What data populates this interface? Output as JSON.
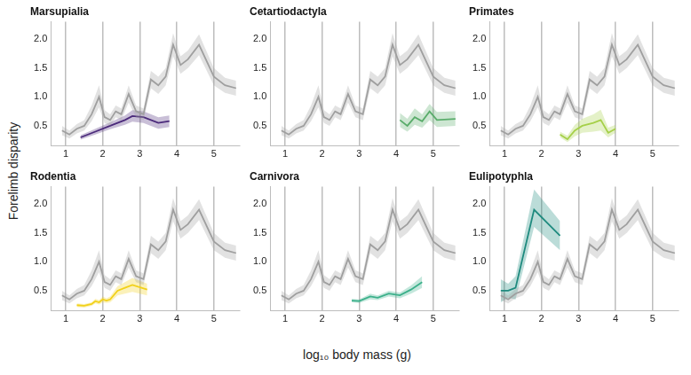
{
  "xlabel": "log₁₀ body mass (g)",
  "ylabel": "Forelimb disparity",
  "chart_data": [
    {
      "type": "line",
      "title": "Marsupialia",
      "xlim": [
        0.6,
        5.7
      ],
      "xticks": [
        1,
        2,
        3,
        4,
        5
      ],
      "ylim": [
        0.15,
        2.3
      ],
      "yticks": [
        0.5,
        {
          "value": 1,
          "label": "1.0"
        },
        1.5,
        {
          "value": 2,
          "label": "2.0"
        }
      ],
      "grid": "x",
      "series": [
        {
          "color": "#a0a0a0",
          "x": [
            0.9,
            1.1,
            1.3,
            1.5,
            1.7,
            1.9,
            2.05,
            2.2,
            2.35,
            2.5,
            2.7,
            2.9,
            3.1,
            3.3,
            3.5,
            3.7,
            3.9,
            4.1,
            4.3,
            4.6,
            5.0,
            5.3,
            5.6
          ],
          "values": [
            0.42,
            0.35,
            0.45,
            0.5,
            0.7,
            1.0,
            0.65,
            0.6,
            0.75,
            0.7,
            1.05,
            0.75,
            0.7,
            1.3,
            1.2,
            1.35,
            1.9,
            1.55,
            1.65,
            1.9,
            1.35,
            1.2,
            1.15
          ],
          "lower": [
            0.34,
            0.28,
            0.37,
            0.42,
            0.58,
            0.82,
            0.55,
            0.5,
            0.65,
            0.6,
            0.9,
            0.65,
            0.6,
            1.15,
            1.05,
            1.2,
            1.7,
            1.4,
            1.5,
            1.72,
            1.2,
            1.07,
            1.02
          ],
          "upper": [
            0.5,
            0.42,
            0.53,
            0.6,
            0.85,
            1.2,
            0.77,
            0.7,
            0.85,
            0.8,
            1.2,
            0.85,
            0.8,
            1.45,
            1.35,
            1.5,
            2.1,
            1.7,
            1.8,
            2.08,
            1.5,
            1.33,
            1.28
          ]
        },
        {
          "color": "#4b2a7b",
          "x": [
            1.4,
            1.8,
            2.2,
            2.6,
            2.8,
            3.1,
            3.5,
            3.8
          ],
          "values": [
            0.3,
            0.4,
            0.5,
            0.6,
            0.67,
            0.65,
            0.55,
            0.58
          ],
          "lower": [
            0.26,
            0.35,
            0.44,
            0.52,
            0.57,
            0.55,
            0.45,
            0.48
          ],
          "upper": [
            0.34,
            0.45,
            0.56,
            0.68,
            0.77,
            0.75,
            0.65,
            0.68
          ]
        }
      ]
    },
    {
      "type": "line",
      "title": "Cetartiodactyla",
      "xlim": [
        0.6,
        5.7
      ],
      "xticks": [
        1,
        2,
        3,
        4,
        5
      ],
      "ylim": [
        0.15,
        2.3
      ],
      "yticks": [
        0.5,
        {
          "value": 1,
          "label": "1.0"
        },
        1.5,
        {
          "value": 2,
          "label": "2.0"
        }
      ],
      "grid": "x",
      "series": [
        {
          "color": "#a0a0a0",
          "x": [
            0.9,
            1.1,
            1.3,
            1.5,
            1.7,
            1.9,
            2.05,
            2.2,
            2.35,
            2.5,
            2.7,
            2.9,
            3.1,
            3.3,
            3.5,
            3.7,
            3.9,
            4.1,
            4.3,
            4.6,
            5.0,
            5.3,
            5.6
          ],
          "values": [
            0.42,
            0.35,
            0.45,
            0.5,
            0.7,
            1.0,
            0.65,
            0.6,
            0.75,
            0.7,
            1.05,
            0.75,
            0.7,
            1.3,
            1.2,
            1.35,
            1.9,
            1.55,
            1.65,
            1.9,
            1.35,
            1.2,
            1.15
          ],
          "lower": [
            0.34,
            0.28,
            0.37,
            0.42,
            0.58,
            0.82,
            0.55,
            0.5,
            0.65,
            0.6,
            0.9,
            0.65,
            0.6,
            1.15,
            1.05,
            1.2,
            1.7,
            1.4,
            1.5,
            1.72,
            1.2,
            1.07,
            1.02
          ],
          "upper": [
            0.5,
            0.42,
            0.53,
            0.6,
            0.85,
            1.2,
            0.77,
            0.7,
            0.85,
            0.8,
            1.2,
            0.85,
            0.8,
            1.45,
            1.35,
            1.5,
            2.1,
            1.7,
            1.8,
            2.08,
            1.5,
            1.33,
            1.28
          ]
        },
        {
          "color": "#5aad6b",
          "x": [
            4.1,
            4.3,
            4.5,
            4.7,
            4.9,
            5.1,
            5.6
          ],
          "values": [
            0.6,
            0.5,
            0.65,
            0.58,
            0.75,
            0.6,
            0.62
          ],
          "lower": [
            0.48,
            0.4,
            0.52,
            0.47,
            0.6,
            0.48,
            0.5
          ],
          "upper": [
            0.72,
            0.62,
            0.8,
            0.7,
            0.88,
            0.74,
            0.75
          ]
        }
      ]
    },
    {
      "type": "line",
      "title": "Primates",
      "xlim": [
        0.6,
        5.7
      ],
      "xticks": [
        1,
        2,
        3,
        4,
        5
      ],
      "ylim": [
        0.15,
        2.3
      ],
      "yticks": [
        0.5,
        {
          "value": 1,
          "label": "1.0"
        },
        1.5,
        {
          "value": 2,
          "label": "2.0"
        }
      ],
      "grid": "x",
      "series": [
        {
          "color": "#a0a0a0",
          "x": [
            0.9,
            1.1,
            1.3,
            1.5,
            1.7,
            1.9,
            2.05,
            2.2,
            2.35,
            2.5,
            2.7,
            2.9,
            3.1,
            3.3,
            3.5,
            3.7,
            3.9,
            4.1,
            4.3,
            4.6,
            5.0,
            5.3,
            5.6
          ],
          "values": [
            0.42,
            0.35,
            0.45,
            0.5,
            0.7,
            1.0,
            0.65,
            0.6,
            0.75,
            0.7,
            1.05,
            0.75,
            0.7,
            1.3,
            1.2,
            1.35,
            1.9,
            1.55,
            1.65,
            1.9,
            1.35,
            1.2,
            1.15
          ],
          "lower": [
            0.34,
            0.28,
            0.37,
            0.42,
            0.58,
            0.82,
            0.55,
            0.5,
            0.65,
            0.6,
            0.9,
            0.65,
            0.6,
            1.15,
            1.05,
            1.2,
            1.7,
            1.4,
            1.5,
            1.72,
            1.2,
            1.07,
            1.02
          ],
          "upper": [
            0.5,
            0.42,
            0.53,
            0.6,
            0.85,
            1.2,
            0.77,
            0.7,
            0.85,
            0.8,
            1.2,
            0.85,
            0.8,
            1.45,
            1.35,
            1.5,
            2.1,
            1.7,
            1.8,
            2.08,
            1.5,
            1.33,
            1.28
          ]
        },
        {
          "color": "#a6d04a",
          "x": [
            2.5,
            2.7,
            2.9,
            3.1,
            3.4,
            3.6,
            3.8,
            4.0
          ],
          "values": [
            0.35,
            0.27,
            0.42,
            0.5,
            0.55,
            0.6,
            0.38,
            0.45
          ],
          "lower": [
            0.3,
            0.22,
            0.32,
            0.38,
            0.4,
            0.42,
            0.3,
            0.38
          ],
          "upper": [
            0.4,
            0.33,
            0.52,
            0.62,
            0.7,
            0.78,
            0.47,
            0.52
          ]
        }
      ]
    },
    {
      "type": "line",
      "title": "Rodentia",
      "xlim": [
        0.6,
        5.7
      ],
      "xticks": [
        1,
        2,
        3,
        4,
        5
      ],
      "ylim": [
        0.15,
        2.3
      ],
      "yticks": [
        0.5,
        {
          "value": 1,
          "label": "1.0"
        },
        1.5,
        {
          "value": 2,
          "label": "2.0"
        }
      ],
      "grid": "x",
      "series": [
        {
          "color": "#a0a0a0",
          "x": [
            0.9,
            1.1,
            1.3,
            1.5,
            1.7,
            1.9,
            2.05,
            2.2,
            2.35,
            2.5,
            2.7,
            2.9,
            3.1,
            3.3,
            3.5,
            3.7,
            3.9,
            4.1,
            4.3,
            4.6,
            5.0,
            5.3,
            5.6
          ],
          "values": [
            0.42,
            0.35,
            0.45,
            0.5,
            0.7,
            1.0,
            0.65,
            0.6,
            0.75,
            0.7,
            1.05,
            0.75,
            0.7,
            1.3,
            1.2,
            1.35,
            1.9,
            1.55,
            1.65,
            1.9,
            1.35,
            1.2,
            1.15
          ],
          "lower": [
            0.34,
            0.28,
            0.37,
            0.42,
            0.58,
            0.82,
            0.55,
            0.5,
            0.65,
            0.6,
            0.9,
            0.65,
            0.6,
            1.15,
            1.05,
            1.2,
            1.7,
            1.4,
            1.5,
            1.72,
            1.2,
            1.07,
            1.02
          ],
          "upper": [
            0.5,
            0.42,
            0.53,
            0.6,
            0.85,
            1.2,
            0.77,
            0.7,
            0.85,
            0.8,
            1.2,
            0.85,
            0.8,
            1.45,
            1.35,
            1.5,
            2.1,
            1.7,
            1.8,
            2.08,
            1.5,
            1.33,
            1.28
          ]
        },
        {
          "color": "#f2d21b",
          "x": [
            1.3,
            1.5,
            1.7,
            1.8,
            1.9,
            2.0,
            2.1,
            2.2,
            2.4,
            2.6,
            2.8,
            3.2
          ],
          "values": [
            0.25,
            0.24,
            0.27,
            0.32,
            0.3,
            0.35,
            0.33,
            0.35,
            0.5,
            0.55,
            0.6,
            0.52
          ],
          "lower": [
            0.22,
            0.21,
            0.24,
            0.28,
            0.26,
            0.3,
            0.29,
            0.3,
            0.42,
            0.45,
            0.48,
            0.42
          ],
          "upper": [
            0.28,
            0.27,
            0.3,
            0.36,
            0.34,
            0.4,
            0.37,
            0.4,
            0.58,
            0.65,
            0.72,
            0.62
          ]
        }
      ]
    },
    {
      "type": "line",
      "title": "Carnivora",
      "xlim": [
        0.6,
        5.7
      ],
      "xticks": [
        1,
        2,
        3,
        4,
        5
      ],
      "ylim": [
        0.15,
        2.3
      ],
      "yticks": [
        0.5,
        {
          "value": 1,
          "label": "1.0"
        },
        1.5,
        {
          "value": 2,
          "label": "2.0"
        }
      ],
      "grid": "x",
      "series": [
        {
          "color": "#a0a0a0",
          "x": [
            0.9,
            1.1,
            1.3,
            1.5,
            1.7,
            1.9,
            2.05,
            2.2,
            2.35,
            2.5,
            2.7,
            2.9,
            3.1,
            3.3,
            3.5,
            3.7,
            3.9,
            4.1,
            4.3,
            4.6,
            5.0,
            5.3,
            5.6
          ],
          "values": [
            0.42,
            0.35,
            0.45,
            0.5,
            0.7,
            1.0,
            0.65,
            0.6,
            0.75,
            0.7,
            1.05,
            0.75,
            0.7,
            1.3,
            1.2,
            1.35,
            1.9,
            1.55,
            1.65,
            1.9,
            1.35,
            1.2,
            1.15
          ],
          "lower": [
            0.34,
            0.28,
            0.37,
            0.42,
            0.58,
            0.82,
            0.55,
            0.5,
            0.65,
            0.6,
            0.9,
            0.65,
            0.6,
            1.15,
            1.05,
            1.2,
            1.7,
            1.4,
            1.5,
            1.72,
            1.2,
            1.07,
            1.02
          ],
          "upper": [
            0.5,
            0.42,
            0.53,
            0.6,
            0.85,
            1.2,
            0.77,
            0.7,
            0.85,
            0.8,
            1.2,
            0.85,
            0.8,
            1.45,
            1.35,
            1.5,
            2.1,
            1.7,
            1.8,
            2.08,
            1.5,
            1.33,
            1.28
          ]
        },
        {
          "color": "#3bb08a",
          "x": [
            2.8,
            3.0,
            3.3,
            3.5,
            3.8,
            4.1,
            4.4,
            4.7
          ],
          "values": [
            0.33,
            0.32,
            0.4,
            0.38,
            0.45,
            0.42,
            0.52,
            0.65
          ],
          "lower": [
            0.3,
            0.29,
            0.35,
            0.34,
            0.4,
            0.37,
            0.45,
            0.55
          ],
          "upper": [
            0.36,
            0.35,
            0.45,
            0.42,
            0.5,
            0.47,
            0.59,
            0.75
          ]
        }
      ]
    },
    {
      "type": "line",
      "title": "Eulipotyphla",
      "xlim": [
        0.6,
        5.7
      ],
      "xticks": [
        1,
        2,
        3,
        4,
        5
      ],
      "ylim": [
        0.15,
        2.3
      ],
      "yticks": [
        0.5,
        {
          "value": 1,
          "label": "1.0"
        },
        1.5,
        {
          "value": 2,
          "label": "2.0"
        }
      ],
      "grid": "x",
      "series": [
        {
          "color": "#a0a0a0",
          "x": [
            0.9,
            1.1,
            1.3,
            1.5,
            1.7,
            1.9,
            2.05,
            2.2,
            2.35,
            2.5,
            2.7,
            2.9,
            3.1,
            3.3,
            3.5,
            3.7,
            3.9,
            4.1,
            4.3,
            4.6,
            5.0,
            5.3,
            5.6
          ],
          "values": [
            0.42,
            0.35,
            0.45,
            0.5,
            0.7,
            1.0,
            0.65,
            0.6,
            0.75,
            0.7,
            1.05,
            0.75,
            0.7,
            1.3,
            1.2,
            1.35,
            1.9,
            1.55,
            1.65,
            1.9,
            1.35,
            1.2,
            1.15
          ],
          "lower": [
            0.34,
            0.28,
            0.37,
            0.42,
            0.58,
            0.82,
            0.55,
            0.5,
            0.65,
            0.6,
            0.9,
            0.65,
            0.6,
            1.15,
            1.05,
            1.2,
            1.7,
            1.4,
            1.5,
            1.72,
            1.2,
            1.07,
            1.02
          ],
          "upper": [
            0.5,
            0.42,
            0.53,
            0.6,
            0.85,
            1.2,
            0.77,
            0.7,
            0.85,
            0.8,
            1.2,
            0.85,
            0.8,
            1.45,
            1.35,
            1.5,
            2.1,
            1.7,
            1.8,
            2.08,
            1.5,
            1.33,
            1.28
          ]
        },
        {
          "color": "#1f8a7f",
          "x": [
            0.9,
            1.1,
            1.3,
            1.8,
            2.5
          ],
          "values": [
            0.5,
            0.5,
            0.55,
            1.9,
            1.45
          ],
          "lower": [
            0.3,
            0.38,
            0.35,
            1.6,
            1.2
          ],
          "upper": [
            0.7,
            0.62,
            0.75,
            2.25,
            1.7
          ]
        }
      ]
    }
  ]
}
